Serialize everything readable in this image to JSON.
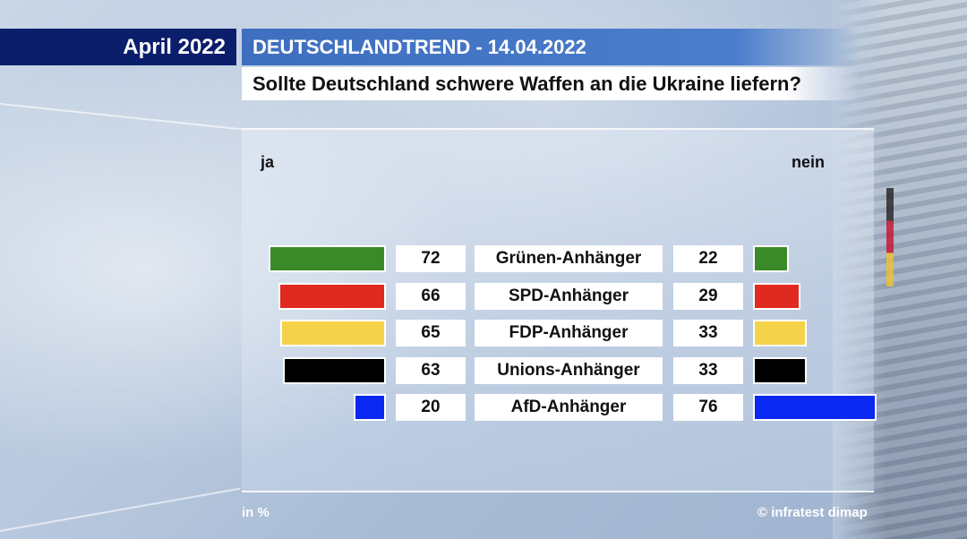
{
  "header": {
    "date": "April 2022",
    "series_title": "DEUTSCHLANDTREND - 14.04.2022",
    "question": "Sollte Deutschland schwere Waffen an die Ukraine liefern?"
  },
  "chart_data": {
    "type": "bar",
    "title": "Sollte Deutschland schwere Waffen an die Ukraine liefern?",
    "left_label": "ja",
    "right_label": "nein",
    "unit": "in %",
    "categories": [
      "Grünen-Anhänger",
      "SPD-Anhänger",
      "FDP-Anhänger",
      "Unions-Anhänger",
      "AfD-Anhänger"
    ],
    "series": [
      {
        "name": "ja",
        "values": [
          72,
          66,
          65,
          63,
          20
        ]
      },
      {
        "name": "nein",
        "values": [
          22,
          29,
          33,
          33,
          76
        ]
      }
    ],
    "colors": [
      "#3b8a2a",
      "#e0291f",
      "#f4d34a",
      "#000000",
      "#0a28f2"
    ]
  },
  "footer": {
    "unit": "in %",
    "source": "© infratest dimap"
  }
}
